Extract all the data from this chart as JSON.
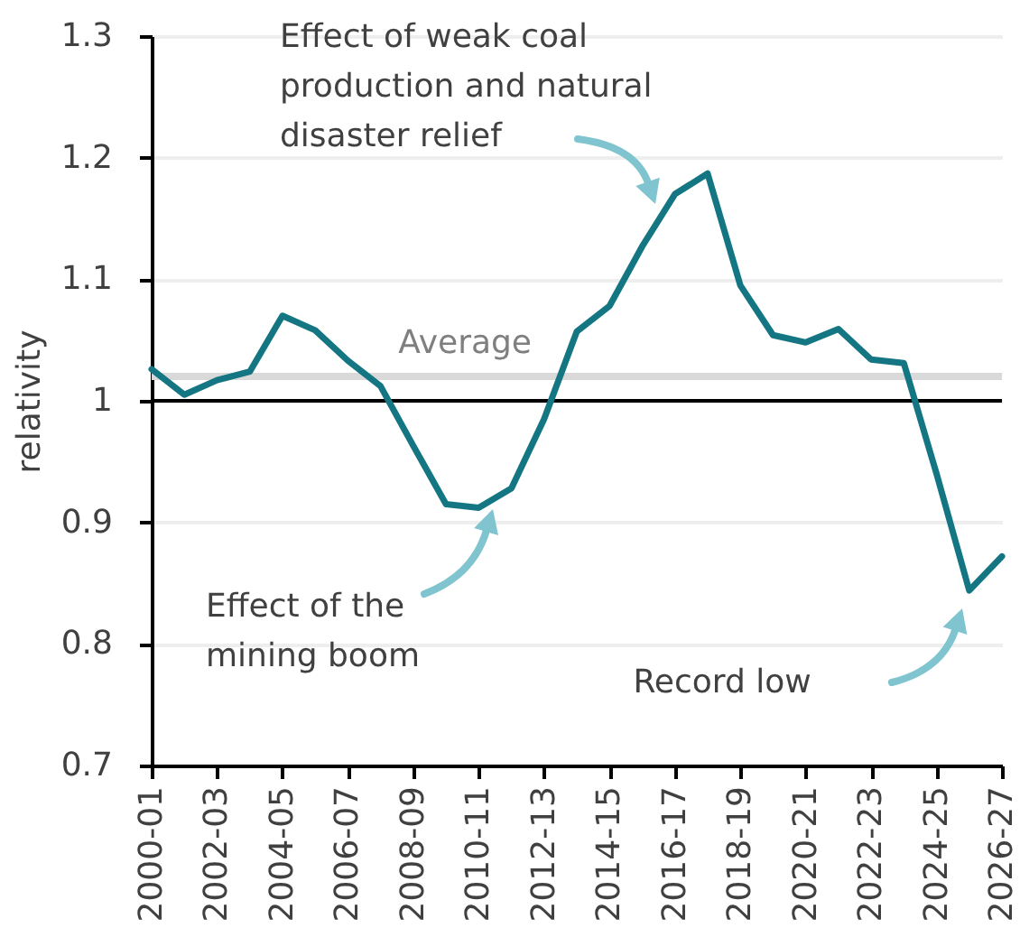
{
  "chart_data": {
    "type": "line",
    "ylabel": "relativity",
    "categories": [
      "2000-01",
      null,
      "2002-03",
      null,
      "2004-05",
      null,
      "2006-07",
      null,
      "2008-09",
      null,
      "2010-11",
      null,
      "2012-13",
      null,
      "2014-15",
      null,
      "2016-17",
      null,
      "2018-19",
      null,
      "2020-21",
      null,
      "2022-23",
      null,
      "2024-25",
      null,
      "2026-27"
    ],
    "series": [
      {
        "color": "#147682",
        "values": [
          1.026,
          1.005,
          1.017,
          1.024,
          1.07,
          1.058,
          1.033,
          1.012,
          0.963,
          0.915,
          0.912,
          0.928,
          0.985,
          1.057,
          1.078,
          1.127,
          1.17,
          1.187,
          1.095,
          1.054,
          1.048,
          1.059,
          1.034,
          1.031,
          0.94,
          0.844,
          0.872
        ]
      }
    ],
    "ylim": [
      0.7,
      1.3
    ],
    "yticks": [
      0.7,
      0.8,
      0.9,
      1,
      1.1,
      1.2,
      1.3
    ],
    "grid": "y",
    "line_style": "solid",
    "ref_lines": [
      {
        "axis": "y",
        "value": 1,
        "color": "#000000"
      },
      {
        "axis": "y",
        "value": 1.02,
        "label": "Average",
        "color": "#d9d9d9"
      }
    ],
    "annotations": [
      "Effect of weak coal production and natural disaster relief",
      "Effect of the mining boom",
      "Record low"
    ]
  }
}
